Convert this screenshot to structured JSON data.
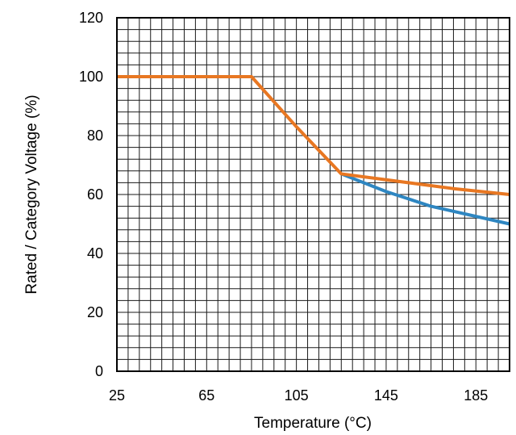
{
  "chart_data": {
    "type": "line",
    "xlabel": "Temperature (°C)",
    "ylabel": "Rated / Category Voltage (%)",
    "xlim": [
      25,
      200
    ],
    "ylim": [
      0,
      120
    ],
    "x_tick_labels": [
      "25",
      "65",
      "105",
      "145",
      "185"
    ],
    "x_ticks": [
      25,
      65,
      105,
      145,
      185
    ],
    "y_tick_labels": [
      "0",
      "20",
      "40",
      "60",
      "80",
      "100",
      "120"
    ],
    "y_ticks": [
      0,
      20,
      40,
      60,
      80,
      100,
      120
    ],
    "minor_x_step": 5,
    "minor_y_step": 4,
    "grid": true,
    "series": [
      {
        "color": "#2e86c1",
        "x": [
          125,
          145,
          165,
          200
        ],
        "y": [
          67,
          61,
          56,
          50
        ]
      },
      {
        "color": "#e87722",
        "x": [
          25,
          85,
          105,
          125,
          145,
          175,
          200
        ],
        "y": [
          100,
          100,
          83,
          67,
          65,
          62,
          60
        ]
      }
    ]
  }
}
